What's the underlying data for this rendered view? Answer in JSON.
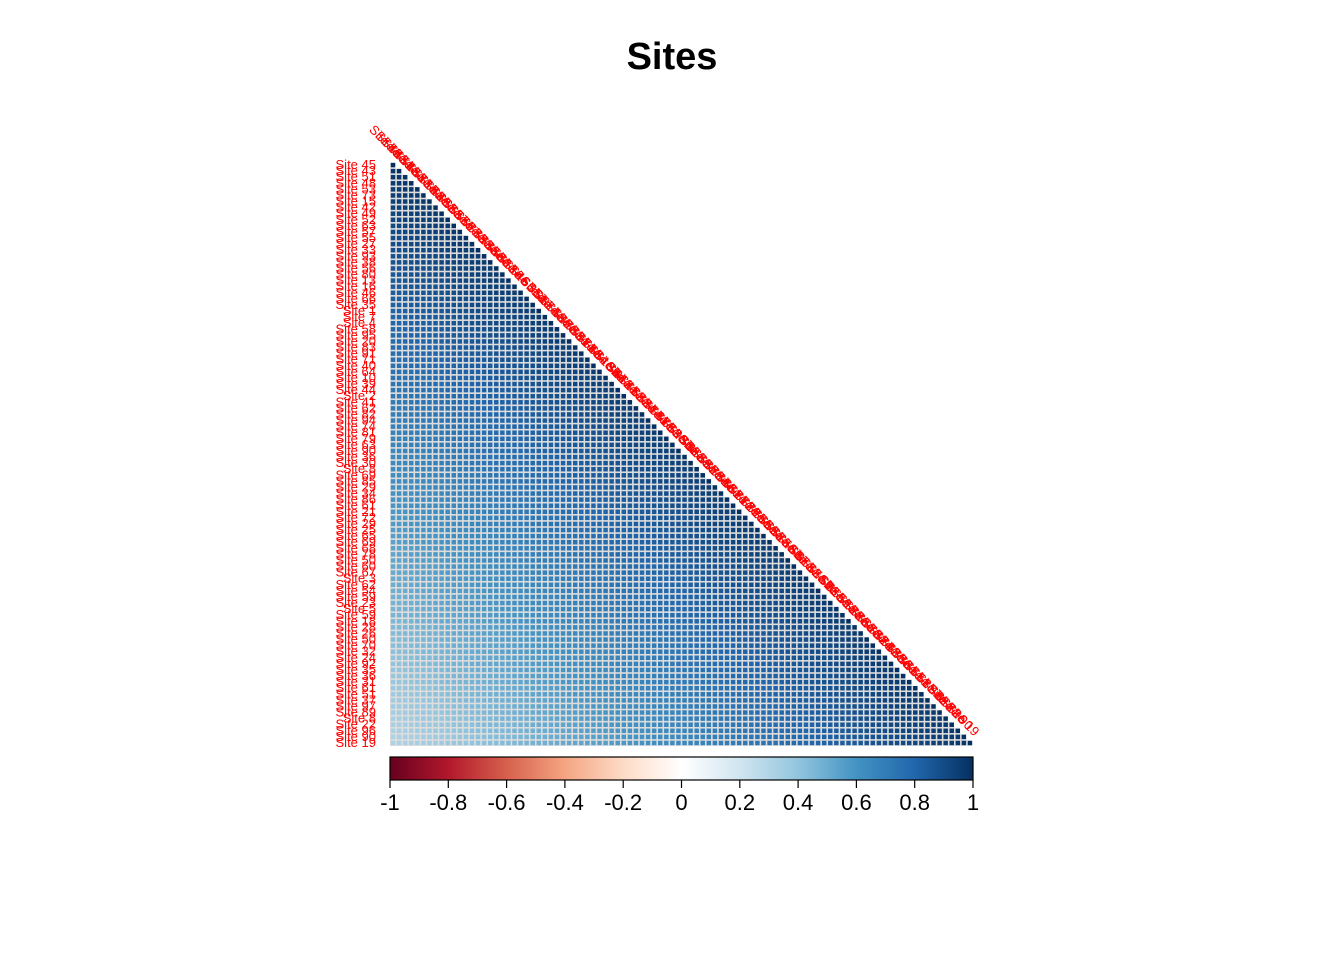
{
  "chart_data": {
    "type": "heatmap",
    "title": "Sites",
    "matrix_shape": "lower-triangle",
    "label_color": "#ff0000",
    "row_labels": [
      "Site 45",
      "Site 43",
      "Site 51",
      "Site 48",
      "Site 53",
      "Site 73",
      "Site 15",
      "Site 42",
      "Site 49",
      "Site 52",
      "Site 63",
      "Site 57",
      "Site 55",
      "Site 27",
      "Site 33",
      "Site 93",
      "Site 38",
      "Site 56",
      "Site 80",
      "Site 13",
      "Site 16",
      "Site 46",
      "Site 66",
      "Site 35",
      "Site 1",
      "Site 7",
      "Site 4",
      "Site 58",
      "Site 95",
      "Site 20",
      "Site 83",
      "Site 91",
      "Site 71",
      "Site 40",
      "Site 64",
      "Site 10",
      "Site 39",
      "Site 44",
      "Site 2",
      "Site 41",
      "Site 62",
      "Site 82",
      "Site 94",
      "Site 74",
      "Site 81",
      "Site 79",
      "Site 63",
      "Site 90",
      "Site 36",
      "Site 30",
      "Site 8",
      "Site 69",
      "Site 85",
      "Site 29",
      "Site 34",
      "Site 86",
      "Site 61",
      "Site 21",
      "Site 72",
      "Site 29",
      "Site 25",
      "Site 65",
      "Site 69",
      "Site 68",
      "Site 78",
      "Site 50",
      "Site 60",
      "Site 67",
      "Site 3",
      "Site 62",
      "Site 54",
      "Site 59",
      "Site 23",
      "Site 5",
      "Site 59",
      "Site 18",
      "Site 28",
      "Site 26",
      "Site 50",
      "Site 70",
      "Site 32",
      "Site 24",
      "Site 92",
      "Site 35",
      "Site 36",
      "Site 31",
      "Site 61",
      "Site 51",
      "Site 37",
      "Site 97",
      "Site 89",
      "Site 8",
      "Site 22",
      "Site 96",
      "Site 90",
      "Site 19"
    ],
    "value_range": [
      -1,
      1
    ],
    "values_summary": "All correlations positive, approximately 0.85–1.0 near the diagonal, decreasing to about 0.35–0.5 in the bottom-left corner",
    "diagonal_value": 1,
    "colorbar": {
      "ticks": [
        "-1",
        "-0.8",
        "-0.6",
        "-0.4",
        "-0.2",
        "0",
        "0.2",
        "0.4",
        "0.6",
        "0.8",
        "1"
      ],
      "colors": [
        "#67001F",
        "#B2182B",
        "#D6604D",
        "#F4A582",
        "#FDDBC7",
        "#FFFFFF",
        "#D1E5F0",
        "#92C5DE",
        "#4393C3",
        "#2166AC",
        "#053061"
      ]
    }
  }
}
